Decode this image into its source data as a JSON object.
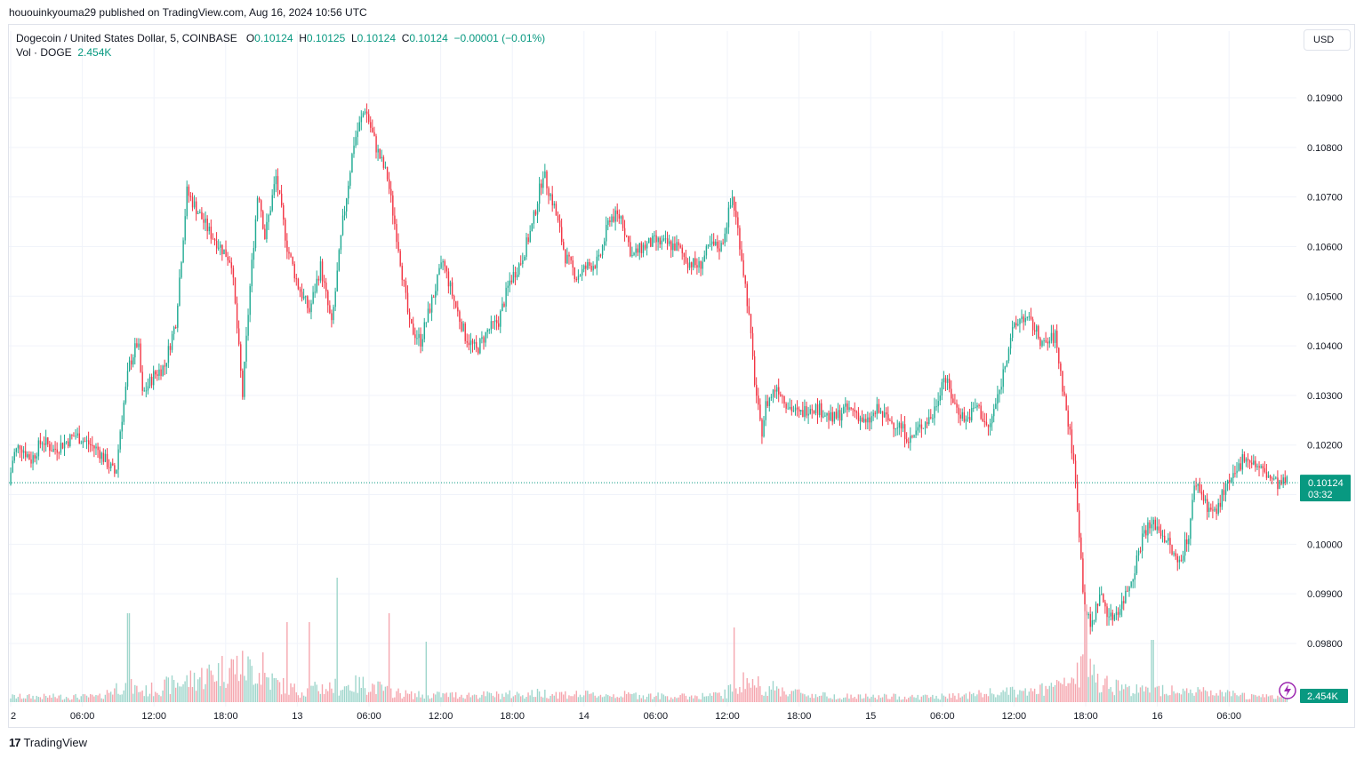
{
  "caption": "hououinkyouma29 published on TradingView.com, Aug 16, 2024 10:56 UTC",
  "legend": {
    "symbol": "Dogecoin / United States Dollar, 5, COINBASE",
    "open_label": "O",
    "open": "0.10124",
    "high_label": "H",
    "high": "0.10125",
    "low_label": "L",
    "low": "0.10124",
    "close_label": "C",
    "close": "0.10124",
    "change": "−0.00001 (−0.01%)",
    "vol_label": "Vol · DOGE",
    "vol_value": "2.454K"
  },
  "currency_button": "USD",
  "branding": "TradingView",
  "chart_data": {
    "type": "candlestick",
    "interval_minutes": 5,
    "price_axis": {
      "ticks": [
        "0.10900",
        "0.10800",
        "0.10700",
        "0.10600",
        "0.10500",
        "0.10400",
        "0.10300",
        "0.10200",
        "0.10000",
        "0.09900",
        "0.09800"
      ],
      "range": [
        0.0972,
        0.1092
      ]
    },
    "time_axis": {
      "ticks": [
        "2",
        "06:00",
        "12:00",
        "18:00",
        "13",
        "06:00",
        "12:00",
        "18:00",
        "14",
        "06:00",
        "12:00",
        "18:00",
        "15",
        "06:00",
        "12:00",
        "18:00",
        "16",
        "06:00"
      ]
    },
    "last_price": {
      "value": "0.10124",
      "countdown": "03:32",
      "numeric": 0.10124
    },
    "volume_label": "2.454K",
    "price_path": [
      [
        0,
        0.1012
      ],
      [
        0.2,
        0.1018
      ],
      [
        0.5,
        0.102
      ],
      [
        1,
        0.1017
      ],
      [
        1.5,
        0.1021
      ],
      [
        2,
        0.1019
      ],
      [
        3,
        0.1022
      ],
      [
        4,
        0.1019
      ],
      [
        4.8,
        0.1014
      ],
      [
        5,
        0.1023
      ],
      [
        5.4,
        0.1036
      ],
      [
        5.8,
        0.1041
      ],
      [
        6,
        0.103
      ],
      [
        6.5,
        0.1034
      ],
      [
        7,
        0.1036
      ],
      [
        7.5,
        0.1045
      ],
      [
        8,
        0.1071
      ],
      [
        9,
        0.1063
      ],
      [
        10,
        0.1057
      ],
      [
        10.5,
        0.103
      ],
      [
        10.8,
        0.105
      ],
      [
        11.2,
        0.1072
      ],
      [
        11.5,
        0.1062
      ],
      [
        12,
        0.1074
      ],
      [
        12.5,
        0.106
      ],
      [
        13,
        0.1052
      ],
      [
        13.5,
        0.1047
      ],
      [
        14,
        0.1056
      ],
      [
        14.5,
        0.1044
      ],
      [
        15,
        0.1065
      ],
      [
        15.5,
        0.1081
      ],
      [
        16,
        0.1088
      ],
      [
        16.5,
        0.108
      ],
      [
        17,
        0.1074
      ],
      [
        17.5,
        0.106
      ],
      [
        18,
        0.1044
      ],
      [
        18.5,
        0.1041
      ],
      [
        19,
        0.1049
      ],
      [
        19.5,
        0.1057
      ],
      [
        20,
        0.1049
      ],
      [
        20.5,
        0.1042
      ],
      [
        21,
        0.1039
      ],
      [
        21.5,
        0.1043
      ],
      [
        22,
        0.1045
      ],
      [
        22.5,
        0.1053
      ],
      [
        23,
        0.1057
      ],
      [
        23.5,
        0.1064
      ],
      [
        24,
        0.1075
      ],
      [
        24.5,
        0.1068
      ],
      [
        25,
        0.1058
      ],
      [
        25.5,
        0.1054
      ],
      [
        26,
        0.1056
      ],
      [
        26.5,
        0.1057
      ],
      [
        27,
        0.1066
      ],
      [
        27.5,
        0.1066
      ],
      [
        28,
        0.1058
      ],
      [
        28.5,
        0.106
      ],
      [
        29,
        0.1061
      ],
      [
        30,
        0.106
      ],
      [
        30.5,
        0.1057
      ],
      [
        31,
        0.1056
      ],
      [
        31.5,
        0.106
      ],
      [
        32,
        0.106
      ],
      [
        32.5,
        0.107
      ],
      [
        32.8,
        0.1062
      ],
      [
        33.2,
        0.1048
      ],
      [
        33.5,
        0.1033
      ],
      [
        33.8,
        0.1022
      ],
      [
        34,
        0.1028
      ],
      [
        34.5,
        0.1032
      ],
      [
        35,
        0.1028
      ],
      [
        35.5,
        0.1026
      ],
      [
        36,
        0.1028
      ],
      [
        36.5,
        0.1027
      ],
      [
        37,
        0.1025
      ],
      [
        37.5,
        0.1027
      ],
      [
        38,
        0.1027
      ],
      [
        38.5,
        0.1024
      ],
      [
        39,
        0.1027
      ],
      [
        39.5,
        0.1025
      ],
      [
        40,
        0.1024
      ],
      [
        40.5,
        0.1021
      ],
      [
        41,
        0.1024
      ],
      [
        41.5,
        0.1026
      ],
      [
        42,
        0.1034
      ],
      [
        42.5,
        0.1028
      ],
      [
        43,
        0.1025
      ],
      [
        43.5,
        0.1028
      ],
      [
        44,
        0.1023
      ],
      [
        44.5,
        0.1031
      ],
      [
        45,
        0.1042
      ],
      [
        45.5,
        0.1046
      ],
      [
        46,
        0.1044
      ],
      [
        46.5,
        0.104
      ],
      [
        47,
        0.1042
      ],
      [
        47.4,
        0.103
      ],
      [
        47.8,
        0.1018
      ],
      [
        48,
        0.1008
      ],
      [
        48.3,
        0.0988
      ],
      [
        48.6,
        0.0983
      ],
      [
        49,
        0.099
      ],
      [
        49.5,
        0.0985
      ],
      [
        50,
        0.0988
      ],
      [
        50.5,
        0.0994
      ],
      [
        51,
        0.1003
      ],
      [
        51.5,
        0.1004
      ],
      [
        52,
        0.1001
      ],
      [
        52.5,
        0.0996
      ],
      [
        53,
        0.1002
      ],
      [
        53.3,
        0.1013
      ],
      [
        53.8,
        0.1008
      ],
      [
        54.2,
        0.1006
      ],
      [
        54.6,
        0.1011
      ],
      [
        55,
        0.1013
      ],
      [
        55.5,
        0.1018
      ],
      [
        56,
        0.1016
      ],
      [
        56.5,
        0.1014
      ],
      [
        57,
        0.1012
      ],
      [
        57.4,
        0.10124
      ]
    ],
    "volume_profile": [
      [
        0,
        0.03
      ],
      [
        4,
        0.03
      ],
      [
        5,
        0.1
      ],
      [
        6,
        0.06
      ],
      [
        8,
        0.12
      ],
      [
        10,
        0.2
      ],
      [
        11,
        0.18
      ],
      [
        12,
        0.1
      ],
      [
        13,
        0.06
      ],
      [
        14,
        0.08
      ],
      [
        16,
        0.1
      ],
      [
        17,
        0.06
      ],
      [
        18,
        0.04
      ],
      [
        20,
        0.04
      ],
      [
        22,
        0.04
      ],
      [
        24,
        0.05
      ],
      [
        26,
        0.04
      ],
      [
        28,
        0.04
      ],
      [
        30,
        0.03
      ],
      [
        32,
        0.04
      ],
      [
        33,
        0.12
      ],
      [
        34,
        0.08
      ],
      [
        36,
        0.04
      ],
      [
        38,
        0.03
      ],
      [
        40,
        0.03
      ],
      [
        42,
        0.03
      ],
      [
        44,
        0.05
      ],
      [
        46,
        0.06
      ],
      [
        47.5,
        0.1
      ],
      [
        48.3,
        0.2
      ],
      [
        49,
        0.12
      ],
      [
        50,
        0.08
      ],
      [
        51,
        0.06
      ],
      [
        52,
        0.08
      ],
      [
        53,
        0.06
      ],
      [
        54,
        0.05
      ],
      [
        55,
        0.04
      ],
      [
        56,
        0.03
      ],
      [
        57.4,
        0.03
      ]
    ],
    "volume_spikes": [
      [
        5.3,
        0.5
      ],
      [
        11.3,
        0.28
      ],
      [
        12.4,
        0.45
      ],
      [
        13.4,
        0.45
      ],
      [
        14.7,
        0.7
      ],
      [
        17,
        0.5
      ],
      [
        18.7,
        0.34
      ],
      [
        32.5,
        0.42
      ],
      [
        48.3,
        0.55
      ],
      [
        51.3,
        0.35
      ]
    ],
    "colors": {
      "up": "#22ab94",
      "down": "#f23645",
      "vol_up": "#9fd6cc",
      "vol_down": "#f5a6ae",
      "accent": "#089981",
      "grid": "#f0f3fa"
    }
  }
}
